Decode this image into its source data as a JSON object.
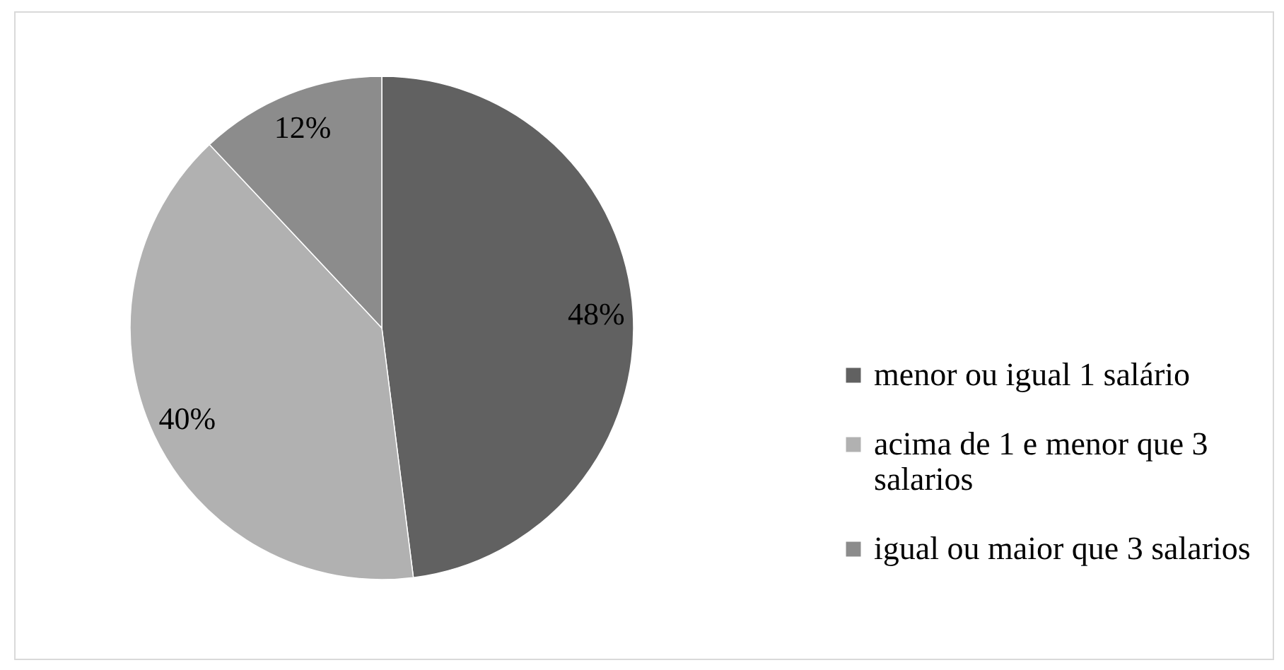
{
  "chart_data": {
    "type": "pie",
    "categories": [
      "menor ou igual 1 salário",
      "acima de 1 e menor que 3 salarios",
      "igual ou maior que 3 salarios"
    ],
    "values": [
      48,
      40,
      12
    ],
    "colors": [
      "#616161",
      "#b1b1b1",
      "#8c8c8c"
    ],
    "value_labels": [
      "48%",
      "40%",
      "12%"
    ],
    "legend": "right"
  }
}
